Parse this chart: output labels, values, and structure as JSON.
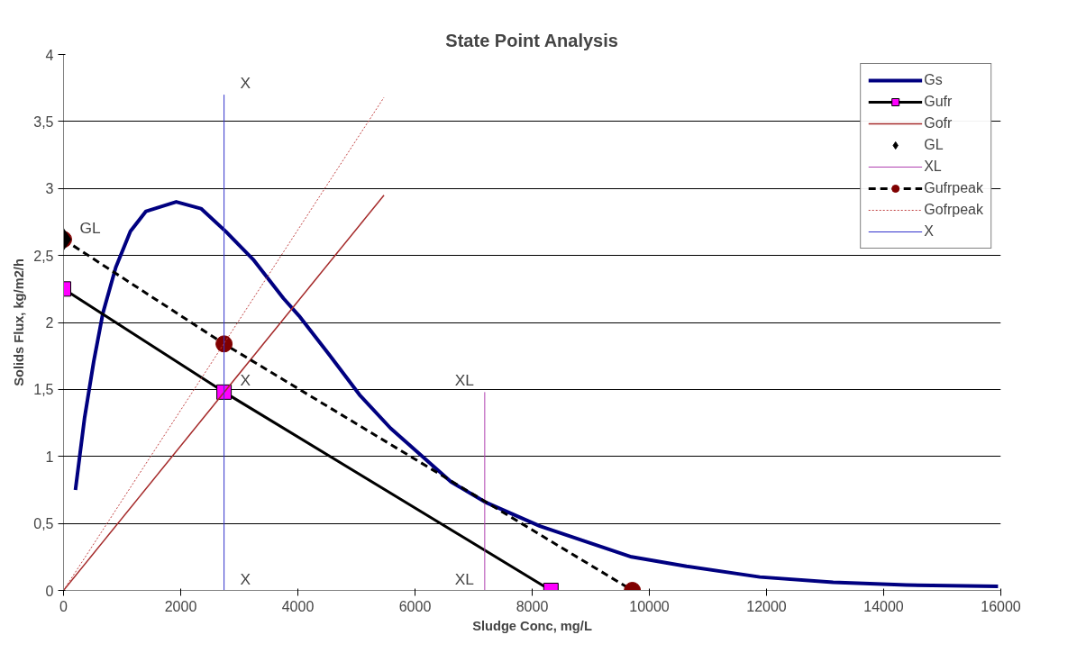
{
  "chart_data": {
    "type": "line",
    "title": "State Point Analysis",
    "xlabel": "Sludge Conc, mg/L",
    "ylabel": "Solids Flux, kg/m2/h",
    "xlim": [
      0,
      16000
    ],
    "xticks": [
      0,
      2000,
      4000,
      6000,
      8000,
      10000,
      12000,
      14000,
      16000
    ],
    "ylim": [
      0,
      4
    ],
    "yticks": [
      0,
      {
        "value": 0.5,
        "label": "0,5"
      },
      1,
      {
        "value": 1.5,
        "label": "1,5"
      },
      2,
      {
        "value": 2.5,
        "label": "2,5"
      },
      3,
      {
        "value": 3.5,
        "label": "3,5"
      },
      4
    ],
    "grid": "y",
    "legend": "top right",
    "series": [
      {
        "name": "Gs",
        "color": "#000080",
        "line_style": "solid",
        "x": [
          203,
          360,
          516,
          672,
          891,
          1142,
          1408,
          1924,
          2346,
          2768,
          3237,
          3754,
          4019,
          4535,
          5052,
          5583,
          6099,
          6615,
          7194,
          8132,
          9696,
          10635,
          11886,
          13137,
          14388,
          15952
        ],
        "values": [
          0.75,
          1.29,
          1.71,
          2.07,
          2.41,
          2.68,
          2.83,
          2.9,
          2.85,
          2.68,
          2.47,
          2.18,
          2.05,
          1.76,
          1.46,
          1.21,
          1.01,
          0.81,
          0.66,
          0.48,
          0.25,
          0.18,
          0.1,
          0.06,
          0.04,
          0.03
        ]
      },
      {
        "name": "Gufr",
        "color": "#000000",
        "colors": [
          "#ff00ff",
          "#ff00ff",
          "#ff00ff"
        ],
        "marker": "square",
        "line_style": "solid",
        "x": [
          0,
          2740,
          8320
        ],
        "values": [
          2.25,
          1.48,
          0
        ]
      },
      {
        "name": "Gofr",
        "color": "#a52a2a",
        "line_style": "solid",
        "x": [
          0,
          5470
        ],
        "values": [
          0,
          2.95
        ]
      },
      {
        "name": "GL",
        "type": "scatter",
        "color": "#000000",
        "marker": "diamond",
        "x": [
          0
        ],
        "values": [
          2.62
        ]
      },
      {
        "name": "XL",
        "color": "#b040b0",
        "line_style": "solid",
        "x": [
          7190,
          7190
        ],
        "values": [
          0,
          1.48
        ]
      },
      {
        "name": "Gufrpeak",
        "color": "#000000",
        "colors": [
          "#800000",
          "#800000",
          "#800000"
        ],
        "marker": "circle",
        "line_style": "dashed",
        "x": [
          0,
          2740,
          9710
        ],
        "values": [
          2.62,
          1.84,
          0
        ]
      },
      {
        "name": "Gofrpeak",
        "color": "#c04040",
        "line_style": "dotted",
        "x": [
          0,
          5470
        ],
        "values": [
          0,
          3.68
        ]
      },
      {
        "name": "X",
        "color": "#3333cc",
        "line_style": "solid",
        "x": [
          2740,
          2740
        ],
        "values": [
          0,
          3.7
        ]
      }
    ],
    "annotations": [
      {
        "text": "X",
        "x": 2740,
        "y": 3.7
      },
      {
        "text": "X",
        "x": 2740,
        "y": 1.48
      },
      {
        "text": "X",
        "x": 2740,
        "y": 0
      },
      {
        "text": "GL",
        "x": 0,
        "y": 2.62
      },
      {
        "text": "XL",
        "x": 7190,
        "y": 1.48
      },
      {
        "text": "XL",
        "x": 7190,
        "y": 0
      }
    ]
  }
}
